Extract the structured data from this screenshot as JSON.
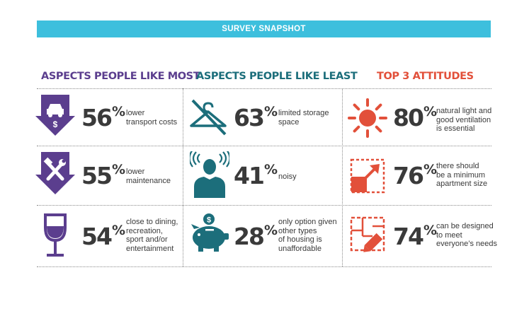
{
  "banner": "SURVEY SNAPSHOT",
  "colors": {
    "banner": "#3dbfdd",
    "purple": "#5b3e8e",
    "teal": "#1c6e7b",
    "red": "#e2503a",
    "text": "#3a3a3a"
  },
  "columns": [
    {
      "title": "ASPECTS PEOPLE LIKE MOST",
      "items": [
        {
          "icon": "car-cost-arrow-icon",
          "value": "56",
          "unit": "%",
          "text": "lower\ntransport costs"
        },
        {
          "icon": "tools-arrow-icon",
          "value": "55",
          "unit": "%",
          "text": "lower\nmaintenance"
        },
        {
          "icon": "wine-glass-icon",
          "value": "54",
          "unit": "%",
          "text": "close to dining,\nrecreation,\nsport and/or\nentertainment"
        }
      ]
    },
    {
      "title": "ASPECTS PEOPLE LIKE LEAST",
      "items": [
        {
          "icon": "crossed-hanger-icon",
          "value": "63",
          "unit": "%",
          "text": "limited storage\nspace"
        },
        {
          "icon": "noisy-person-icon",
          "value": "41",
          "unit": "%",
          "text": "noisy"
        },
        {
          "icon": "piggy-bank-icon",
          "value": "28",
          "unit": "%",
          "text": "only option given\nother types\nof housing is\nunaffordable"
        }
      ]
    },
    {
      "title": "TOP 3 ATTITUDES",
      "items": [
        {
          "icon": "sun-icon",
          "value": "80",
          "unit": "%",
          "text": "natural light and\ngood ventilation\nis essential"
        },
        {
          "icon": "expand-arrow-icon",
          "value": "76",
          "unit": "%",
          "text": "there should\nbe a minimum\napartment size"
        },
        {
          "icon": "floorplan-pencil-icon",
          "value": "74",
          "unit": "%",
          "text": "can be designed\nto meet\neveryone’s needs"
        }
      ]
    }
  ]
}
